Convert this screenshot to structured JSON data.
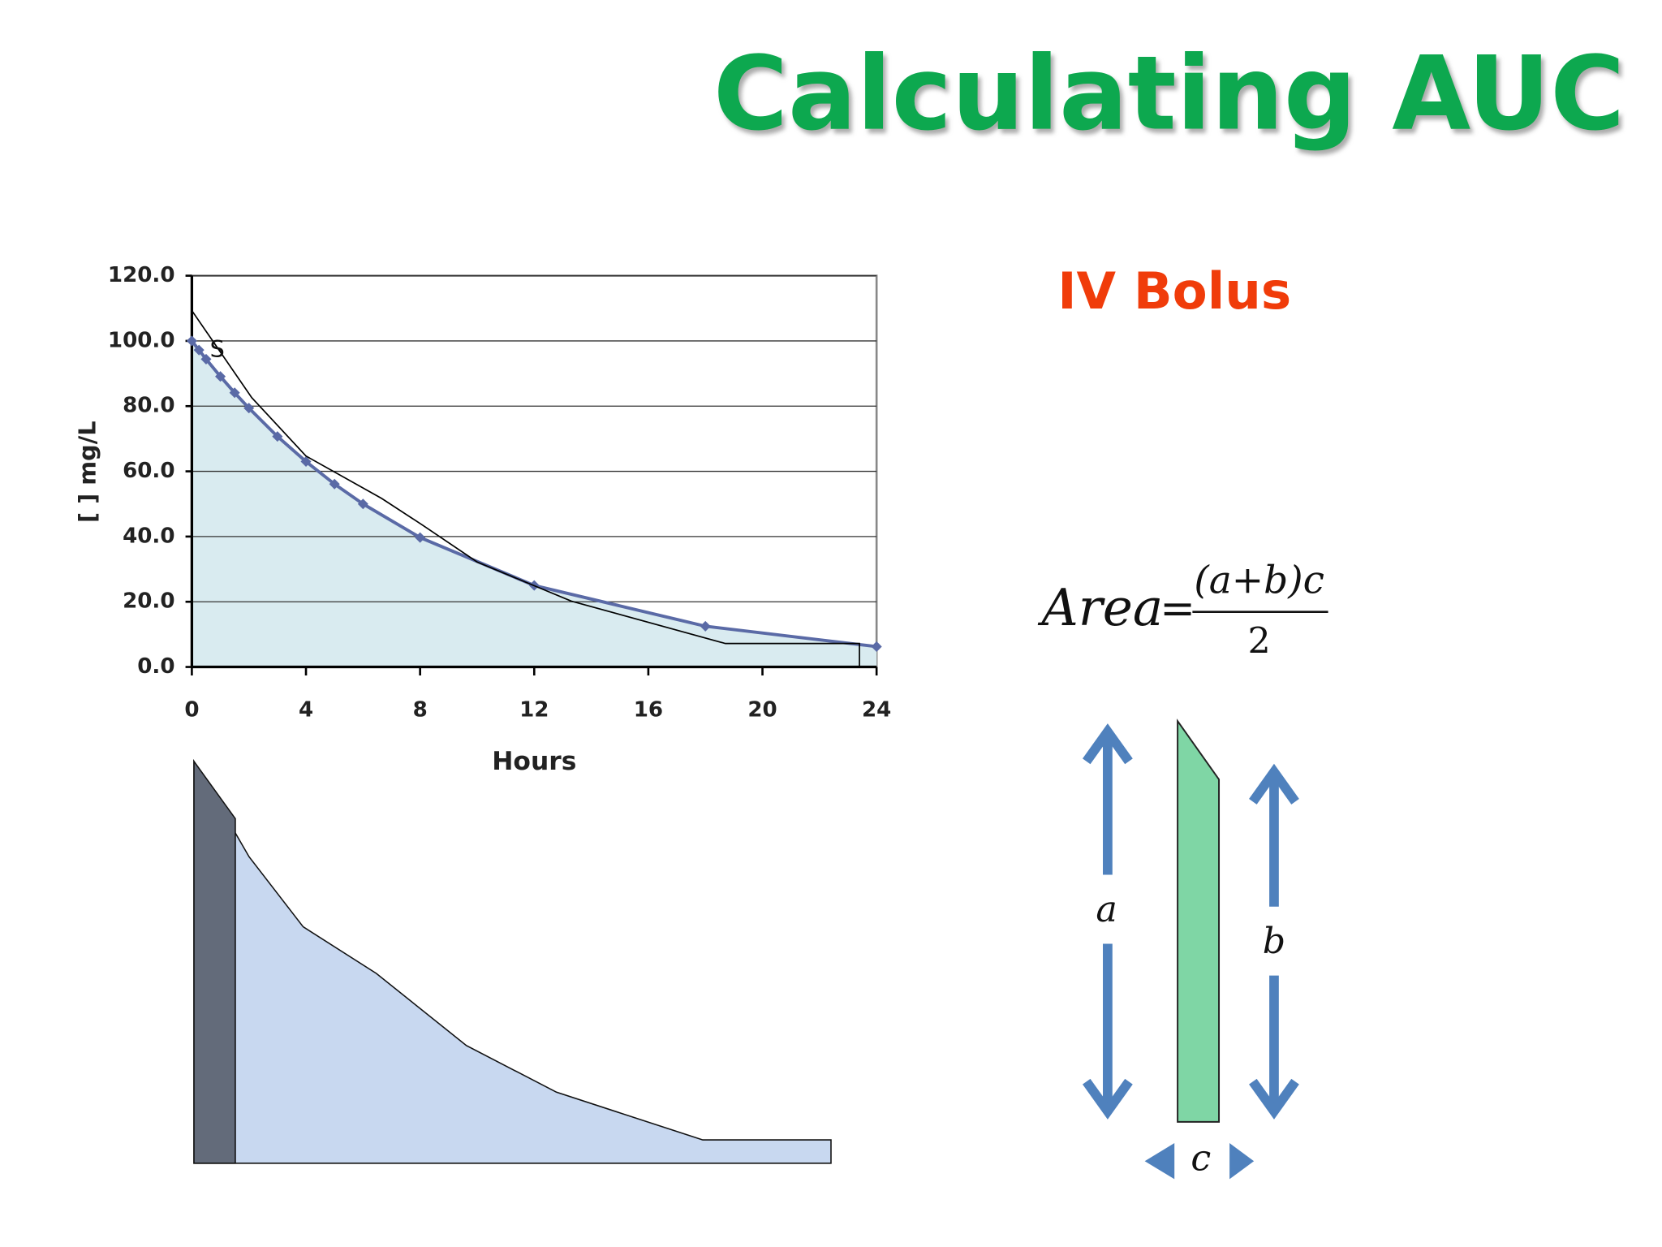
{
  "title": "Calculating AUC",
  "subtitle": "IV Bolus",
  "formula": {
    "lhs": "Area",
    "equals": "=",
    "numerator": "(a+b)c",
    "denominator": "2"
  },
  "diagram_labels": {
    "a": "a",
    "b": "b",
    "c": "c"
  },
  "chart_data": {
    "type": "line",
    "x_label": "Hours",
    "y_label": "[ ] mg/L",
    "annotation": "S",
    "xlim": [
      0,
      24
    ],
    "xticks": [
      0,
      4,
      8,
      12,
      16,
      20,
      24
    ],
    "ylim": [
      0,
      120
    ],
    "yticks": [
      {
        "value": 0,
        "label": "0.0"
      },
      {
        "value": 20,
        "label": "20.0"
      },
      {
        "value": 40,
        "label": "40.0"
      },
      {
        "value": 60,
        "label": "60.0"
      },
      {
        "value": 80,
        "label": "80.0"
      },
      {
        "value": 100,
        "label": "100.0"
      },
      {
        "value": 120,
        "label": "120.0"
      }
    ],
    "grid": true,
    "area_color": "#d9ebf0",
    "series": [
      {
        "color": "#5a6aa6",
        "markers": true,
        "x": [
          0,
          0.25,
          0.5,
          1,
          1.5,
          2,
          3,
          4,
          5,
          6,
          8,
          12,
          18,
          24
        ],
        "values": [
          100,
          97.2,
          94.4,
          89.1,
          84.1,
          79.4,
          70.7,
          63,
          56.1,
          50,
          39.7,
          25,
          12.5,
          6.25
        ]
      },
      {
        "color": "#000000",
        "markers": false,
        "x": [
          0,
          2.1,
          4,
          6.65,
          8.07,
          10,
          13.3,
          18.7,
          23.4,
          23.4
        ],
        "values": [
          109.3,
          82.6,
          64.7,
          51.7,
          43.6,
          32.2,
          20.2,
          7.2,
          7.2,
          0
        ]
      }
    ]
  }
}
